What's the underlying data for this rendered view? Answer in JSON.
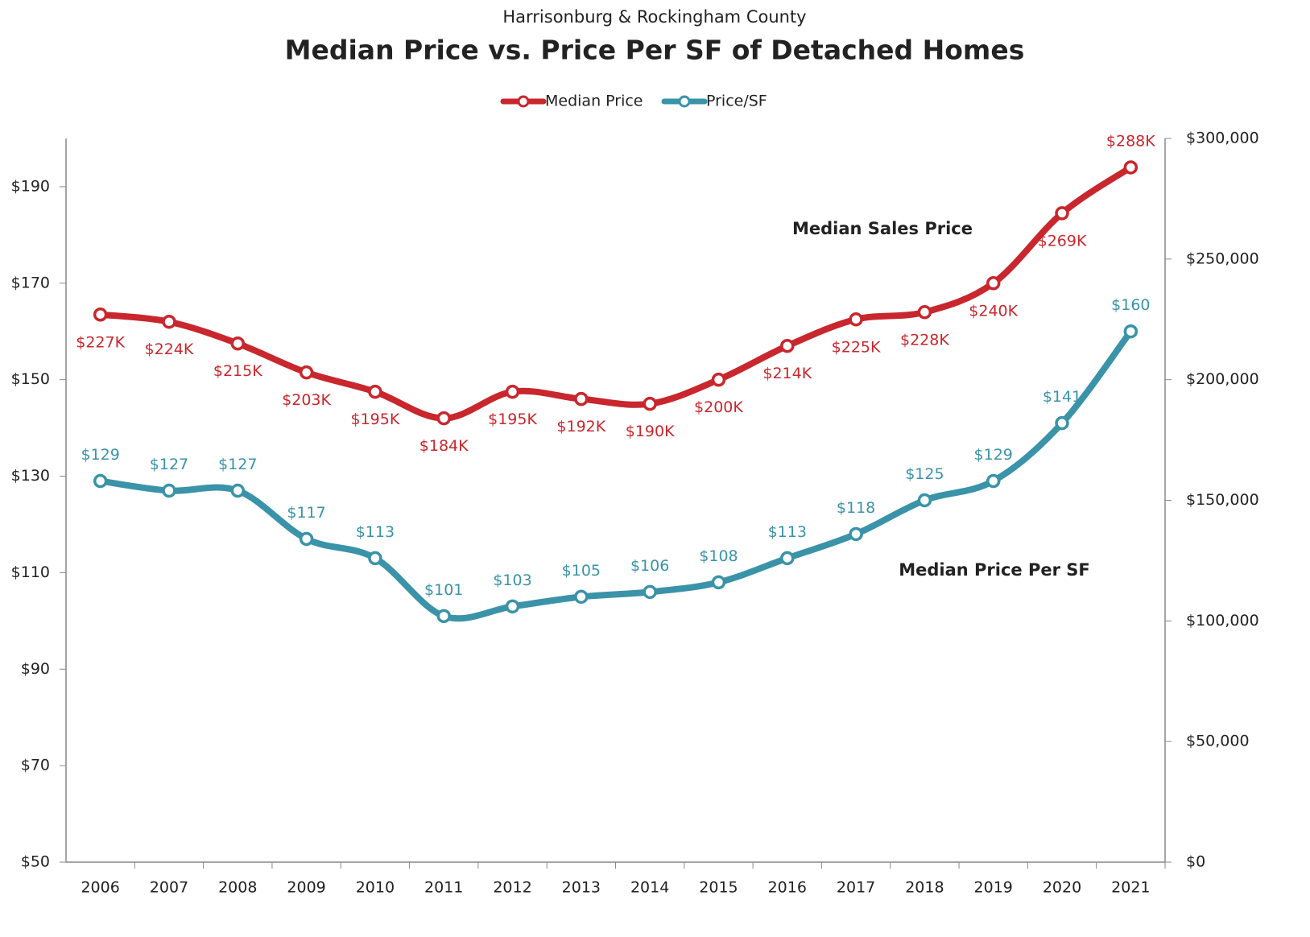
{
  "chart_data": {
    "type": "line",
    "subtitle": "Harrisonburg & Rockingham County",
    "title": "Median Price vs. Price Per SF of Detached Homes",
    "categories": [
      "2006",
      "2007",
      "2008",
      "2009",
      "2010",
      "2011",
      "2012",
      "2013",
      "2014",
      "2015",
      "2016",
      "2017",
      "2018",
      "2019",
      "2020",
      "2021"
    ],
    "series": [
      {
        "name": "Median Price",
        "color": "#c8272d",
        "axis": "y2",
        "values": [
          227000,
          224000,
          215000,
          203000,
          195000,
          184000,
          195000,
          192000,
          190000,
          200000,
          214000,
          225000,
          228000,
          240000,
          269000,
          288000
        ],
        "value_labels": [
          "$227K",
          "$224K",
          "$215K",
          "$203K",
          "$195K",
          "$184K",
          "$195K",
          "$192K",
          "$190K",
          "$200K",
          "$214K",
          "$225K",
          "$228K",
          "$240K",
          "$269K",
          "$288K"
        ]
      },
      {
        "name": "Price/SF",
        "color": "#3a93a8",
        "values": [
          129,
          127,
          127,
          117,
          113,
          101,
          103,
          105,
          106,
          108,
          113,
          118,
          125,
          129,
          141,
          160
        ],
        "value_labels": [
          "$129",
          "$127",
          "$127",
          "$117",
          "$113",
          "$101",
          "$103",
          "$105",
          "$106",
          "$108",
          "$113",
          "$118",
          "$125",
          "$129",
          "$141",
          "$160"
        ]
      }
    ],
    "ylim": [
      50,
      200
    ],
    "yticks": [
      {
        "value": 50,
        "label": "$50"
      },
      {
        "value": 70,
        "label": "$70"
      },
      {
        "value": 90,
        "label": "$90"
      },
      {
        "value": 110,
        "label": "$110"
      },
      {
        "value": 130,
        "label": "$130"
      },
      {
        "value": 150,
        "label": "$150"
      },
      {
        "value": 170,
        "label": "$170"
      },
      {
        "value": 190,
        "label": "$190"
      }
    ],
    "y2lim": [
      0,
      300000
    ],
    "y2ticks": [
      {
        "value": 0,
        "label": "$0"
      },
      {
        "value": 50000,
        "label": "$50,000"
      },
      {
        "value": 100000,
        "label": "$100,000"
      },
      {
        "value": 150000,
        "label": "$150,000"
      },
      {
        "value": 200000,
        "label": "$200,000"
      },
      {
        "value": 250000,
        "label": "$250,000"
      },
      {
        "value": 300000,
        "label": "$300,000"
      }
    ],
    "annotations": [
      "Median Sales Price",
      "Median Price Per SF"
    ],
    "legend": "top"
  }
}
